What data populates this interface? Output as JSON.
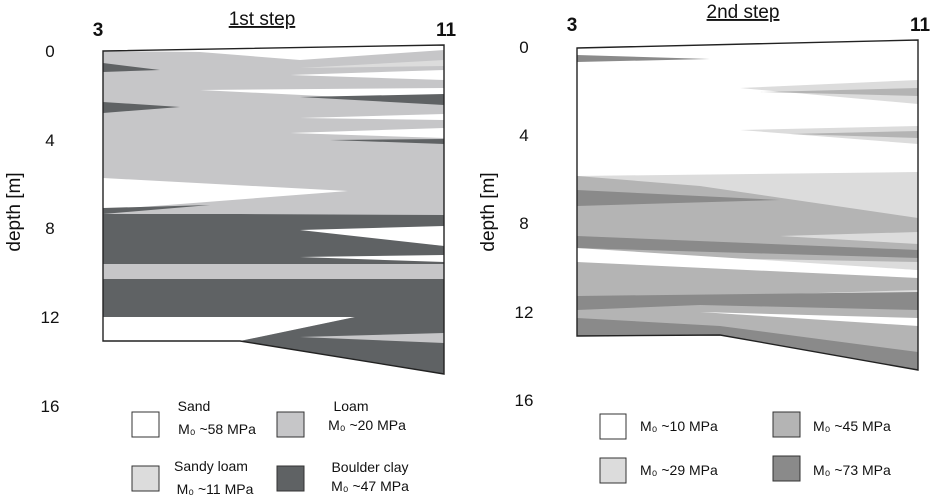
{
  "left": {
    "title": "1st step",
    "left_label": "3",
    "right_label": "11",
    "axis_label": "depth [m]",
    "ticks": [
      "0",
      "4",
      "8",
      "12",
      "16"
    ]
  },
  "right": {
    "title": "2nd step",
    "left_label": "3",
    "right_label": "11",
    "axis_label": "depth [m]",
    "ticks": [
      "0",
      "4",
      "8",
      "12",
      "16"
    ]
  },
  "legend_left": {
    "sand": {
      "name": "Sand",
      "modulus": "M₀ ~58 MPa"
    },
    "sandy_loam": {
      "name": "Sandy loam",
      "modulus": "M₀ ~11 MPa"
    },
    "loam": {
      "name": "Loam",
      "modulus": "M₀ ~20 MPa"
    },
    "boulder_clay": {
      "name": "Boulder clay",
      "modulus": "M₀ ~47 MPa"
    }
  },
  "legend_right": {
    "m10": {
      "modulus": "M₀ ~10 MPa"
    },
    "m29": {
      "modulus": "M₀ ~29 MPa"
    },
    "m45": {
      "modulus": "M₀ ~45 MPa"
    },
    "m73": {
      "modulus": "M₀ ~73 MPa"
    }
  },
  "colors": {
    "white": "#ffffff",
    "light": "#dcdcdc",
    "loam": "#c6c6c8",
    "mid": "#b4b4b4",
    "dark": "#8a8a8a",
    "boulder": "#5f6264",
    "line": "#222222"
  }
}
